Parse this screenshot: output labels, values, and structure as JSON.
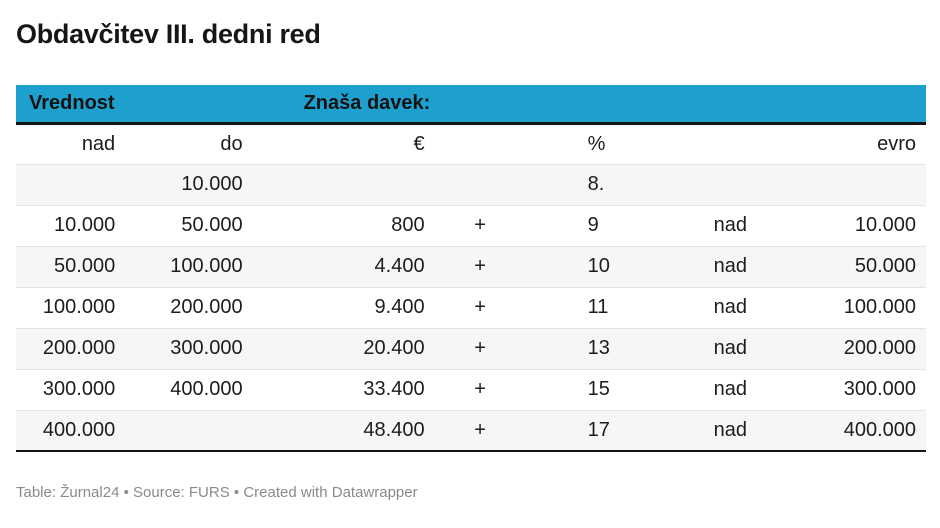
{
  "title": "Obdavčitev III. dedni red",
  "chart_data": {
    "type": "table",
    "title": "Obdavčitev III. dedni red",
    "header_groups": [
      {
        "label": "Vrednost",
        "colspan": 2
      },
      {
        "label": "Znaša davek:",
        "colspan": 5
      }
    ],
    "columns": [
      {
        "label": "nad",
        "align": "right"
      },
      {
        "label": "do",
        "align": "right"
      },
      {
        "label": "€",
        "align": "right"
      },
      {
        "label": "",
        "align": "center"
      },
      {
        "label": "%",
        "align": "left"
      },
      {
        "label": "",
        "align": "center"
      },
      {
        "label": "evro",
        "align": "right"
      }
    ],
    "rows": [
      [
        "",
        "10.000",
        "",
        "",
        "8.",
        "",
        ""
      ],
      [
        "10.000",
        "50.000",
        "800",
        "+",
        "9",
        "nad",
        "10.000"
      ],
      [
        "50.000",
        "100.000",
        "4.400",
        "+",
        "10",
        "nad",
        "50.000"
      ],
      [
        "100.000",
        "200.000",
        "9.400",
        "+",
        "11",
        "nad",
        "100.000"
      ],
      [
        "200.000",
        "300.000",
        "20.400",
        "+",
        "13",
        "nad",
        "200.000"
      ],
      [
        "300.000",
        "400.000",
        "33.400",
        "+",
        "15",
        "nad",
        "300.000"
      ],
      [
        "400.000",
        "",
        "48.400",
        "+",
        "17",
        "nad",
        "400.000"
      ]
    ],
    "layout": {
      "zebra_striping": true,
      "column_widths_percent": [
        12,
        14,
        20,
        10,
        15,
        15,
        14
      ]
    }
  },
  "footer": {
    "table_label": "Table:",
    "table_name": "Žurnal24",
    "separator": "•",
    "source_label": "Source:",
    "source_name": "FURS",
    "credit_prefix": "Created with",
    "credit_name": "Datawrapper"
  },
  "colors": {
    "header_bg": "#1EA0CF",
    "header_text": "#121212",
    "row_alt_bg": "#f6f6f6",
    "row_border": "#e4e4e4",
    "table_border": "#161616",
    "cell_text": "#1d1d1d",
    "title_text": "#161616",
    "footer_text": "#8a8a8a"
  }
}
